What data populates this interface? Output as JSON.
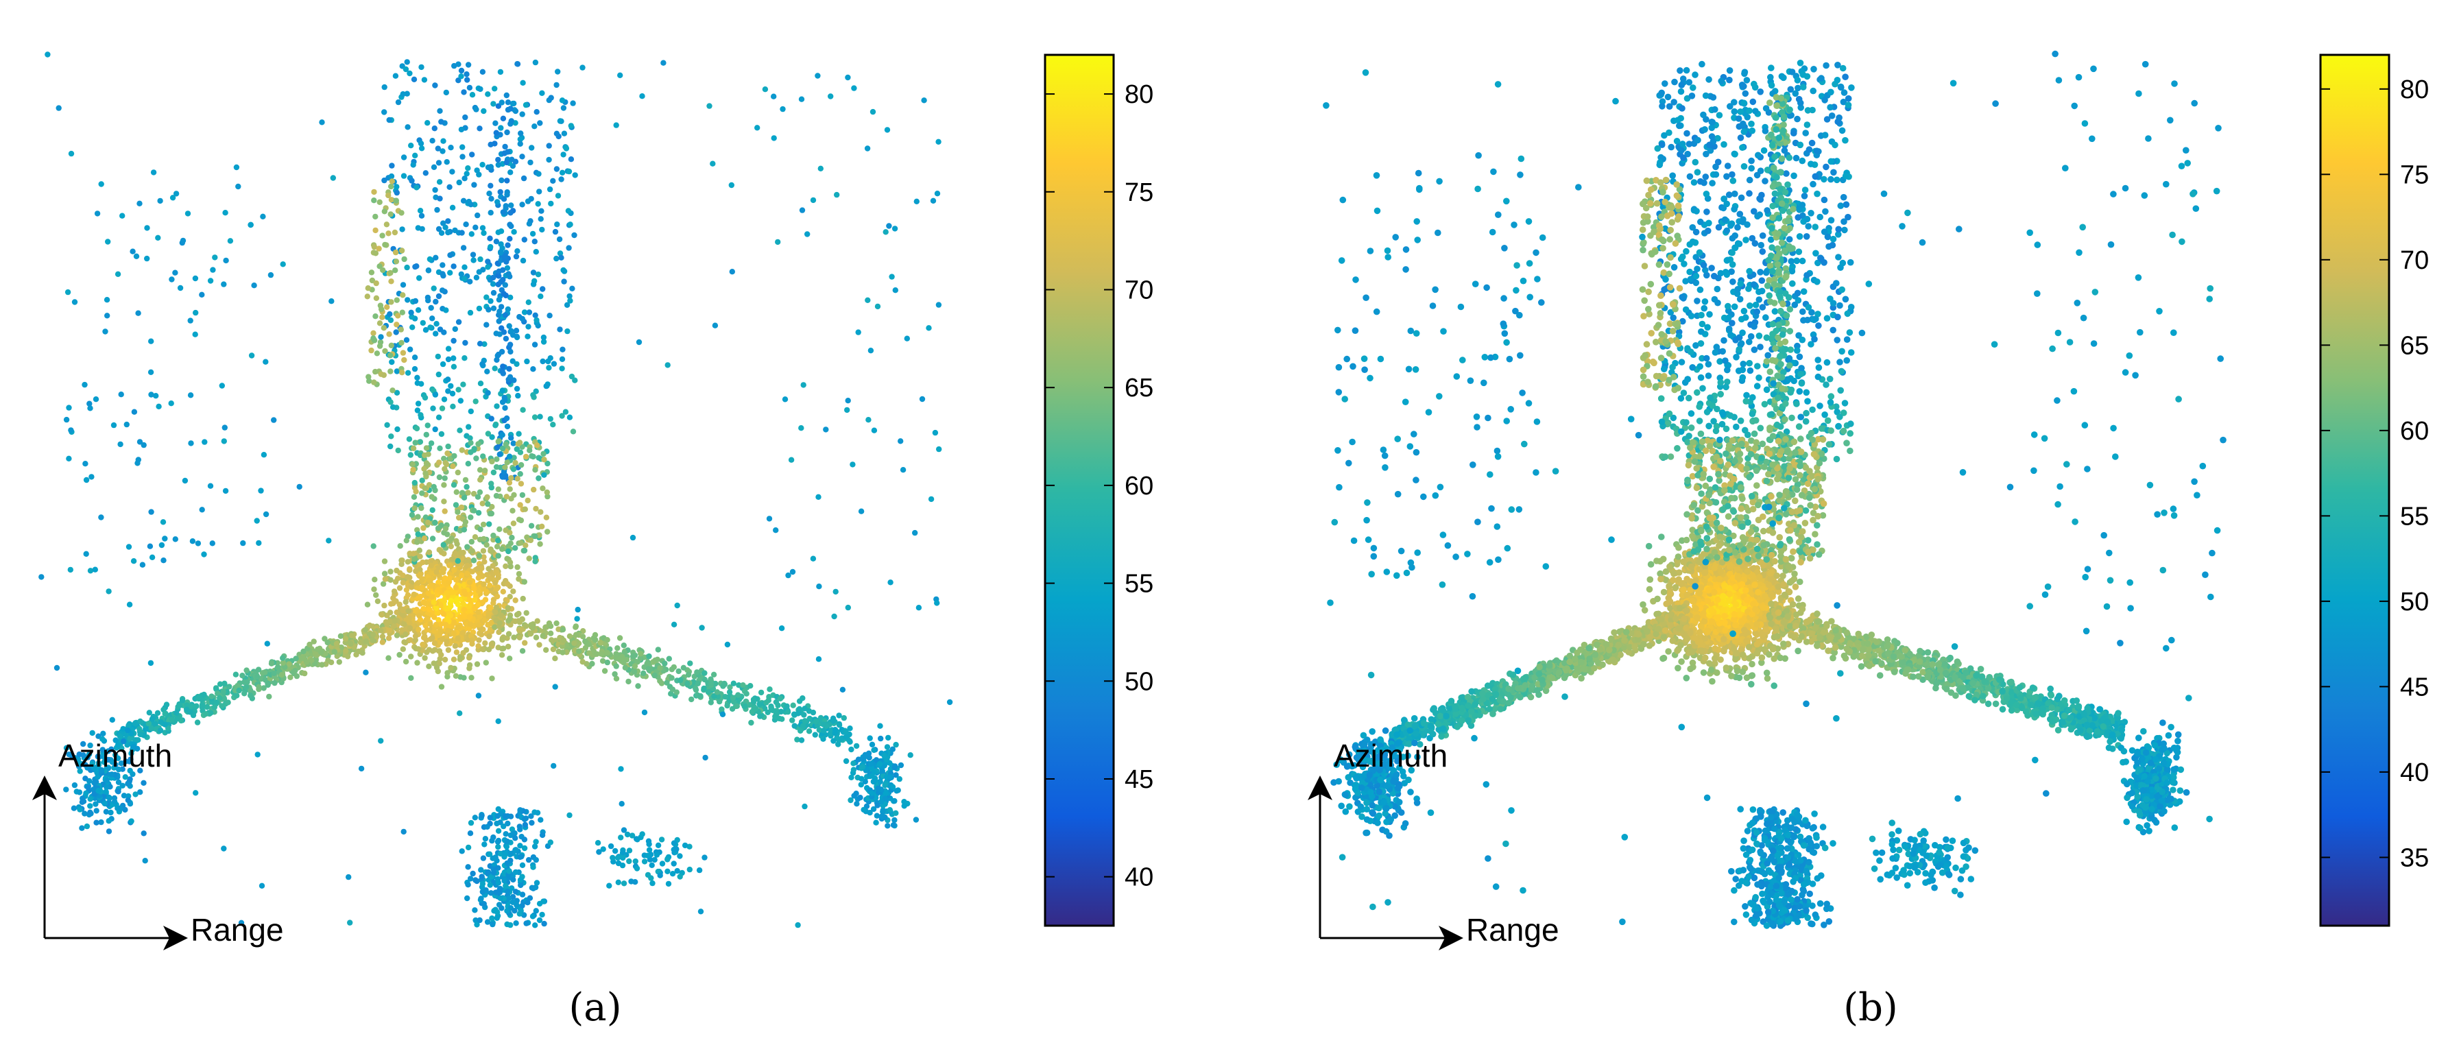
{
  "chart_data": [
    {
      "type": "scatter",
      "panel_label": "(a)",
      "direction_labels": {
        "vertical": "Azimuth",
        "horizontal": "Range"
      },
      "colorbar": {
        "colormap": "parula",
        "range": [
          37.5,
          82
        ],
        "ticks": [
          40,
          45,
          50,
          55,
          60,
          65,
          70,
          75,
          80
        ],
        "tick_labels": [
          "40",
          "45",
          "50",
          "55",
          "60",
          "65",
          "70",
          "75",
          "80"
        ]
      },
      "grid": false,
      "axes_visible": false
    },
    {
      "type": "scatter",
      "panel_label": "(b)",
      "direction_labels": {
        "vertical": "Azimuth",
        "horizontal": "Range"
      },
      "colorbar": {
        "colormap": "parula",
        "range": [
          31,
          82
        ],
        "ticks": [
          35,
          40,
          45,
          50,
          55,
          60,
          65,
          70,
          75,
          80
        ],
        "tick_labels": [
          "35",
          "40",
          "45",
          "50",
          "55",
          "60",
          "65",
          "70",
          "75",
          "80"
        ]
      },
      "grid": false,
      "axes_visible": false
    }
  ],
  "colors": {
    "parula": [
      "#352a87",
      "#0f5cdd",
      "#1481d6",
      "#06a4ca",
      "#2eb7a4",
      "#87bf77",
      "#d1bb59",
      "#fec832",
      "#f9fb0e"
    ],
    "ink": "#000000"
  }
}
